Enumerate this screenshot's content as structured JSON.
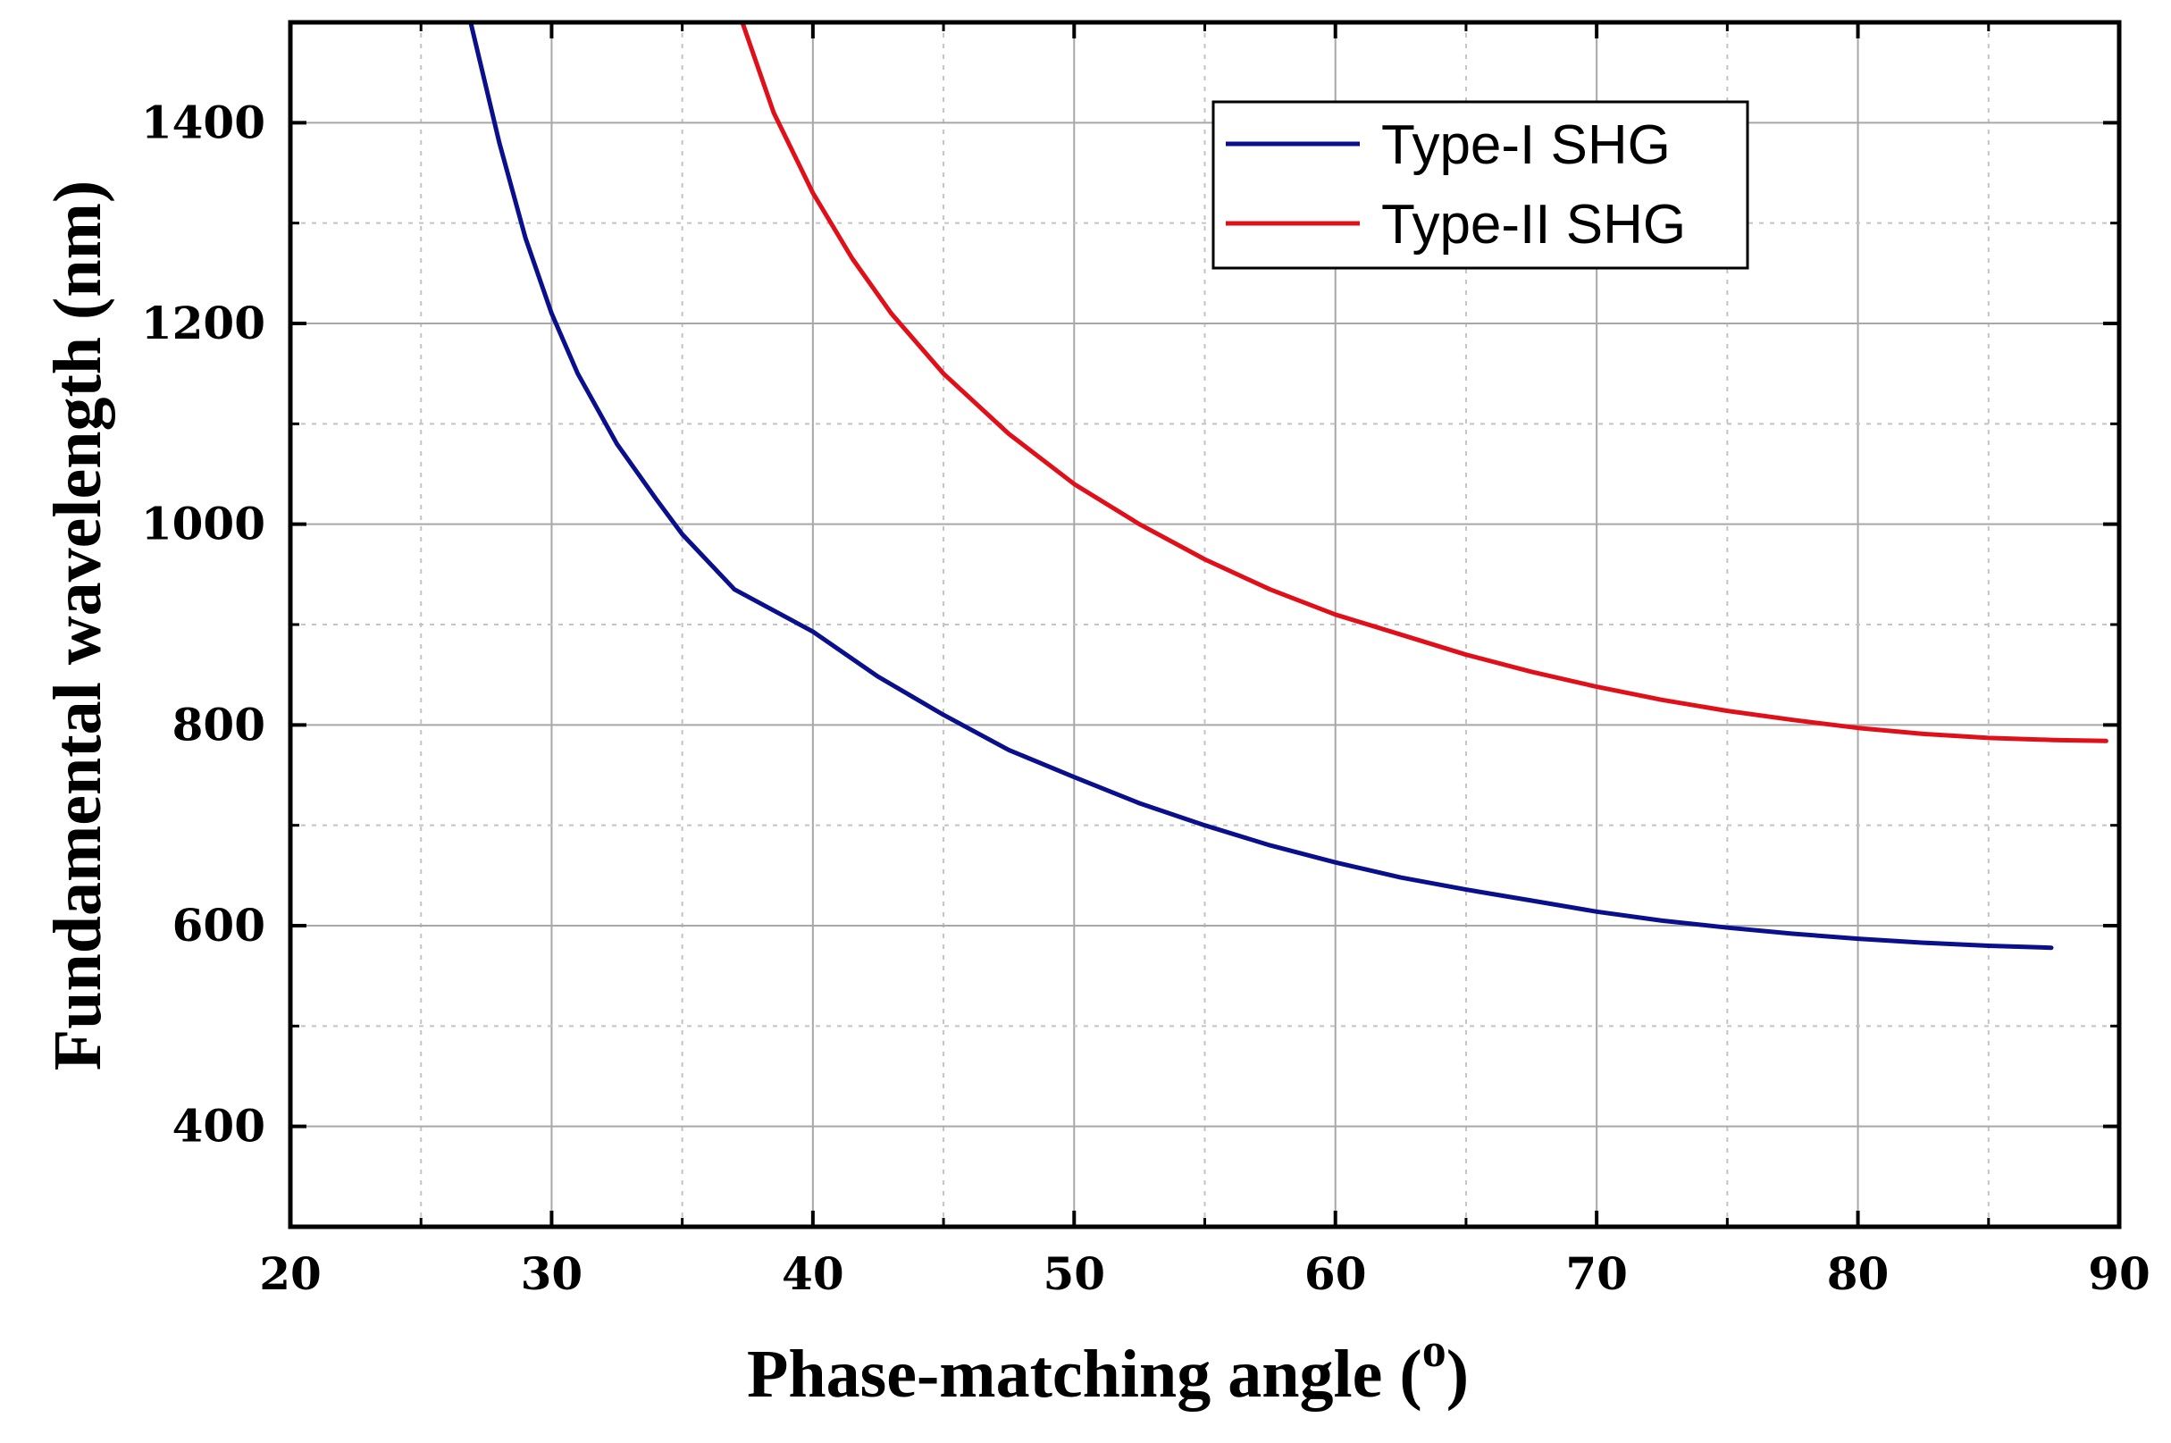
{
  "chart_data": {
    "type": "line",
    "title": "",
    "xlabel": "Phase-matching angle (",
    "xlabel_superscript": "o",
    "xlabel_suffix": ")",
    "ylabel": "Fundamental wavelength (nm)",
    "xlim": [
      20,
      90
    ],
    "ylim": [
      300,
      1500
    ],
    "x_ticks": [
      20,
      30,
      40,
      50,
      60,
      70,
      80,
      90
    ],
    "y_ticks": [
      400,
      600,
      800,
      1000,
      1200,
      1400
    ],
    "grid": true,
    "legend_position": "top-right",
    "series": [
      {
        "name": "Type-I SHG",
        "color": "#0a0f8c",
        "x": [
          26.9,
          28,
          29,
          30,
          31,
          32.5,
          34,
          35,
          37,
          40,
          42.5,
          45,
          47.5,
          50,
          52.5,
          55,
          57.5,
          60,
          62.5,
          65,
          67.5,
          70,
          72.5,
          75,
          77.5,
          80,
          82.5,
          85,
          87.4
        ],
        "y": [
          1500,
          1380,
          1285,
          1210,
          1150,
          1080,
          1025,
          990,
          935,
          893,
          848,
          810,
          775,
          748,
          722,
          700,
          680,
          663,
          648,
          636,
          625,
          614,
          605,
          598,
          592,
          587,
          583,
          580,
          578
        ]
      },
      {
        "name": "Type-II SHG",
        "color": "#e0101a",
        "x": [
          37.3,
          38.5,
          40,
          41.5,
          43,
          45,
          47.5,
          50,
          52.5,
          55,
          57.5,
          60,
          62.5,
          65,
          67.5,
          70,
          72.5,
          75,
          77.5,
          80,
          82.5,
          85,
          87.5,
          89.5
        ],
        "y": [
          1500,
          1410,
          1330,
          1265,
          1210,
          1150,
          1090,
          1040,
          1000,
          965,
          935,
          910,
          890,
          870,
          853,
          838,
          825,
          814,
          805,
          797,
          791,
          787,
          785,
          784
        ]
      }
    ]
  }
}
